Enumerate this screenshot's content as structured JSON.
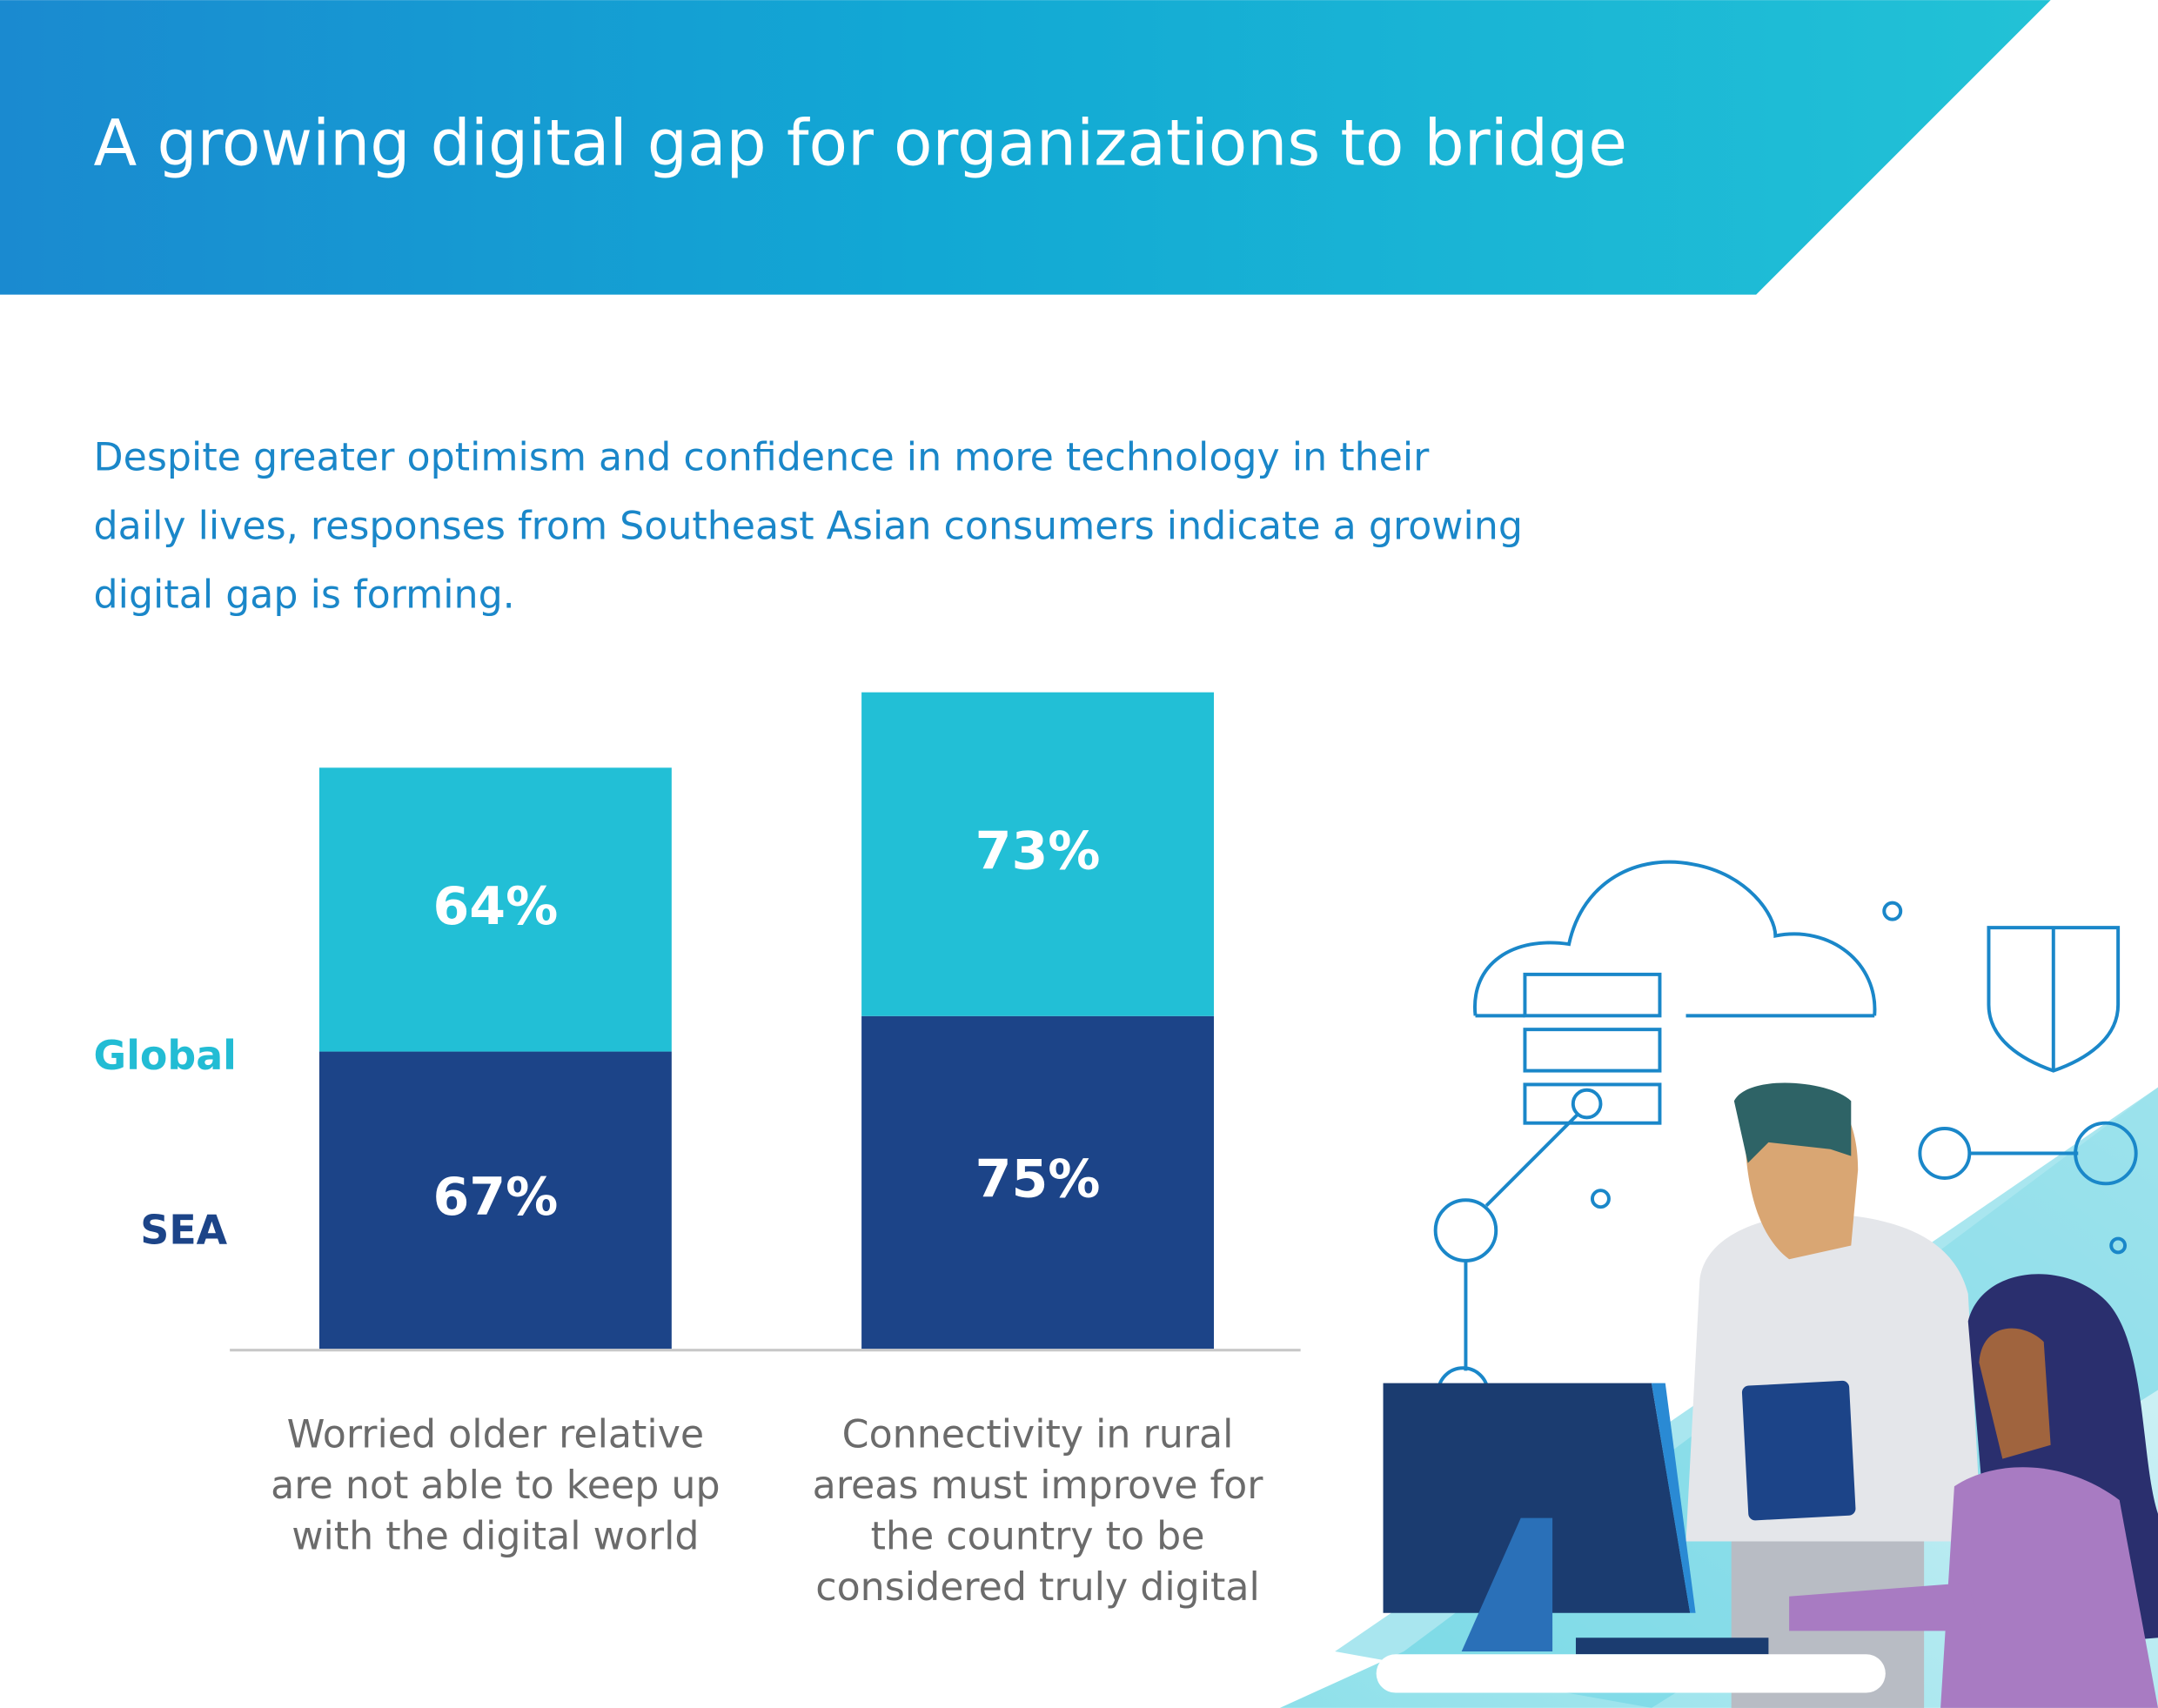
{
  "chart_data": {
    "type": "stacked-bar",
    "title": "A growing digital gap for organizations to bridge",
    "subtitle": [
      "Despite greater optimism and confidence in more technology in their",
      "daily lives, responses from Southeast Asian consumers indicate a growing",
      "digital gap is forming."
    ],
    "categories": [
      [
        "Worried older relative",
        "are not able to keep up",
        "with the digital world"
      ],
      [
        "Connectivity in rural",
        "areas must improve for",
        "the country to be",
        "considered truly digital"
      ]
    ],
    "series": [
      {
        "name": "SEA",
        "color": "#1c4488",
        "values": [
          67,
          75
        ],
        "value_labels": [
          "67%",
          "75%"
        ]
      },
      {
        "name": "Global",
        "color": "#22bfd6",
        "values": [
          64,
          73
        ],
        "value_labels": [
          "64%",
          "73%"
        ]
      }
    ]
  }
}
